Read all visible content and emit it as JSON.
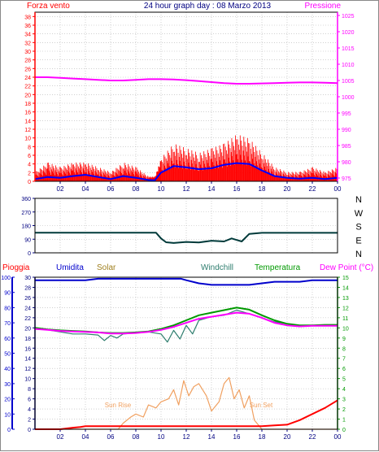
{
  "colors": {
    "axis": "#000080",
    "grid": "#b4b4b4",
    "wind": "#ff0000",
    "avg_wind": "#0000ff",
    "pressure": "#ff00ff",
    "direction": "#003a3a",
    "rain_axis": "#ff0000",
    "humidity": "#0000cc",
    "solar": "#f0a060",
    "windchill": "#2e7d6e",
    "temperature": "#009900",
    "dewpoint": "#ff00ff",
    "rain": "#ff0000",
    "title": "#000080"
  },
  "chart_data": [
    {
      "type": "line",
      "title": "24 hour graph day : 08 Marzo 2013",
      "left_label": "Forza vento",
      "right_label": "Pressione",
      "x_ticks": [
        "02",
        "04",
        "06",
        "08",
        "10",
        "12",
        "14",
        "16",
        "18",
        "20",
        "22",
        "00"
      ],
      "y_left_ticks": [
        "0",
        "2",
        "4",
        "6",
        "8",
        "10",
        "12",
        "14",
        "16",
        "18",
        "20",
        "22",
        "24",
        "26",
        "28",
        "30",
        "32",
        "34",
        "36",
        "38"
      ],
      "y_right_ticks": [
        "975",
        "980",
        "985",
        "990",
        "995",
        "1000",
        "1005",
        "1010",
        "1015",
        "1020",
        "1025"
      ],
      "ylim_left": [
        0,
        39
      ],
      "ylim_right": [
        974,
        1026
      ],
      "xlim": [
        0,
        24
      ],
      "series": [
        {
          "key": "pressure",
          "axis": "right",
          "x": [
            0,
            1,
            2,
            3,
            4,
            5,
            6,
            7,
            8,
            9,
            10,
            11,
            12,
            13,
            14,
            15,
            16,
            17,
            18,
            19,
            20,
            21,
            22,
            23,
            24
          ],
          "values": [
            1006,
            1006,
            1005.8,
            1005.6,
            1005.4,
            1005.2,
            1005,
            1005,
            1005.2,
            1005.4,
            1005.4,
            1005.3,
            1005.1,
            1004.8,
            1004.5,
            1004.2,
            1004,
            1004,
            1004.1,
            1004.2,
            1004.3,
            1004.4,
            1004.4,
            1004.3,
            1004.2
          ]
        },
        {
          "key": "avg_wind",
          "axis": "left",
          "x": [
            0,
            1,
            2,
            3,
            4,
            5,
            6,
            7,
            8,
            9,
            9.5,
            10,
            11,
            12,
            13,
            14,
            15,
            16,
            17,
            18,
            19,
            20,
            21,
            22,
            23,
            24
          ],
          "values": [
            0.5,
            1,
            0.8,
            1.2,
            1.5,
            1,
            0.5,
            1.2,
            0.8,
            0.3,
            0.2,
            2,
            3.5,
            3.2,
            2.8,
            3,
            3.8,
            4.2,
            4,
            2.5,
            1.2,
            0.8,
            0.6,
            0.8,
            0.5,
            0.8
          ]
        },
        {
          "key": "wind",
          "axis": "left",
          "x": [
            0,
            1,
            2,
            3,
            4,
            5,
            6,
            7,
            8,
            9,
            9.5,
            10,
            11,
            12,
            13,
            14,
            15,
            16,
            17,
            18,
            19,
            20,
            21,
            22,
            23,
            24
          ],
          "values": [
            2,
            4,
            3,
            4,
            4,
            3,
            2,
            4,
            3,
            1,
            1,
            5,
            8,
            7,
            6,
            7,
            8,
            10,
            9,
            6,
            3,
            2,
            2,
            3,
            2,
            3
          ]
        }
      ]
    },
    {
      "type": "line",
      "compass_labels": [
        "N",
        "W",
        "S",
        "E",
        "N"
      ],
      "y_ticks": [
        "0",
        "90",
        "180",
        "270",
        "360"
      ],
      "ylim": [
        0,
        360
      ],
      "xlim": [
        0,
        24
      ],
      "series": [
        {
          "key": "direction",
          "x": [
            0,
            2,
            4,
            6,
            8,
            9.6,
            10,
            10.4,
            11,
            12,
            13,
            14,
            15,
            15.6,
            16,
            16.4,
            17,
            18,
            20,
            22,
            24
          ],
          "values": [
            133,
            133,
            133,
            133,
            133,
            133,
            95,
            70,
            65,
            72,
            68,
            80,
            75,
            95,
            85,
            75,
            125,
            132,
            132,
            132,
            132
          ]
        }
      ]
    },
    {
      "type": "line",
      "labels": {
        "rain": "Pioggia",
        "humidity": "Umidita",
        "solar": "Solar",
        "windchill": "Windchill",
        "temperature": "Temperatura",
        "dewpoint": "Dew Point (°C)",
        "sunrise": "Sun Rise",
        "sunset": "Sun Set"
      },
      "x_ticks": [
        "02",
        "04",
        "06",
        "08",
        "10",
        "12",
        "14",
        "16",
        "18",
        "20",
        "22",
        "00"
      ],
      "y_pct_ticks": [
        "0",
        "10",
        "20",
        "30",
        "40",
        "50",
        "60",
        "70",
        "80",
        "90",
        "100"
      ],
      "y_temp_ticks": [
        "0",
        "2",
        "4",
        "6",
        "8",
        "10",
        "12",
        "14",
        "16",
        "18",
        "20",
        "22",
        "24",
        "26",
        "28",
        "30"
      ],
      "y_right_ticks": [
        "0",
        "1",
        "2",
        "3",
        "4",
        "5",
        "6",
        "7",
        "8",
        "9",
        "10",
        "11",
        "12",
        "13",
        "14",
        "15"
      ],
      "xlim": [
        0,
        24
      ],
      "ylim_temp": [
        0,
        30
      ],
      "ylim_pct": [
        0,
        100
      ],
      "series": [
        {
          "key": "humidity",
          "x": [
            0,
            1,
            2,
            3,
            4,
            5,
            6,
            7,
            8,
            9,
            10,
            11,
            11.6,
            12,
            13,
            14,
            15,
            16,
            17,
            18,
            19,
            20,
            21,
            22,
            23,
            24
          ],
          "values": [
            98,
            98,
            98,
            98,
            98,
            99,
            99,
            99,
            99,
            99,
            99,
            99,
            99,
            98,
            96,
            95,
            95,
            95,
            95,
            96,
            97,
            97,
            97,
            98,
            98,
            98
          ]
        },
        {
          "key": "temperature",
          "x": [
            0,
            1,
            2,
            3,
            4,
            5,
            6,
            7,
            8,
            9,
            10,
            11,
            12,
            13,
            14,
            15,
            16,
            17,
            18,
            19,
            20,
            21,
            22,
            23,
            24
          ],
          "values": [
            20,
            19.7,
            19.5,
            19.4,
            19.3,
            19.1,
            19,
            19,
            19.1,
            19.3,
            19.8,
            20.5,
            21.5,
            22.5,
            23,
            23.5,
            24,
            23.6,
            22.5,
            21.5,
            20.8,
            20.5,
            20.5,
            20.6,
            20.6
          ]
        },
        {
          "key": "windchill",
          "x": [
            0,
            1,
            2,
            3,
            4,
            5,
            5.5,
            6,
            6.5,
            7,
            8,
            9,
            10,
            10.5,
            11,
            11.5,
            12,
            12.5,
            13,
            14,
            15,
            16,
            17,
            18,
            19,
            20,
            21,
            22,
            23,
            24
          ],
          "values": [
            20,
            19.6,
            19.2,
            18.8,
            18.8,
            18.6,
            17.5,
            18.5,
            18,
            18.8,
            19,
            19.2,
            18.8,
            17.2,
            19.5,
            17.8,
            20.5,
            18.8,
            21.5,
            22.2,
            22.5,
            23.5,
            22.8,
            22,
            21.2,
            20.8,
            20.5,
            20.5,
            20.4,
            20.5
          ]
        },
        {
          "key": "dewpoint",
          "x": [
            0,
            1,
            2,
            3,
            4,
            5,
            6,
            7,
            8,
            9,
            10,
            11,
            12,
            13,
            14,
            15,
            16,
            17,
            18,
            19,
            20,
            21,
            22,
            23,
            24
          ],
          "values": [
            19.8,
            19.6,
            19.4,
            19.3,
            19.2,
            19.1,
            18.9,
            18.9,
            19,
            19.2,
            19.6,
            20.2,
            21,
            21.8,
            22.2,
            22.6,
            23,
            22.8,
            22,
            21,
            20.5,
            20.3,
            20.4,
            20.4,
            20.4
          ]
        },
        {
          "key": "solar",
          "axis": "pct",
          "x": [
            0,
            6.6,
            7,
            7.6,
            8,
            8.6,
            9,
            9.6,
            10,
            10.6,
            11,
            11.4,
            11.8,
            12.2,
            12.6,
            13,
            13.6,
            14,
            14.6,
            15,
            15.4,
            15.8,
            16.2,
            16.6,
            17,
            17.4,
            18,
            24
          ],
          "values": [
            0,
            0,
            4,
            8,
            10,
            8,
            16,
            14,
            18,
            20,
            26,
            16,
            32,
            22,
            28,
            30,
            22,
            12,
            18,
            30,
            34,
            20,
            26,
            14,
            22,
            6,
            0,
            0
          ]
        },
        {
          "key": "rain",
          "axis": "pct",
          "x": [
            0,
            2,
            3,
            3.6,
            4,
            6,
            7,
            8,
            10,
            12,
            14,
            18,
            19,
            20,
            21,
            22,
            23,
            23.8,
            24
          ],
          "values": [
            0,
            0,
            1,
            1.5,
            2,
            2,
            2,
            2,
            2,
            2,
            2,
            2,
            2.5,
            3,
            6,
            10,
            14,
            18,
            19
          ]
        }
      ]
    }
  ]
}
